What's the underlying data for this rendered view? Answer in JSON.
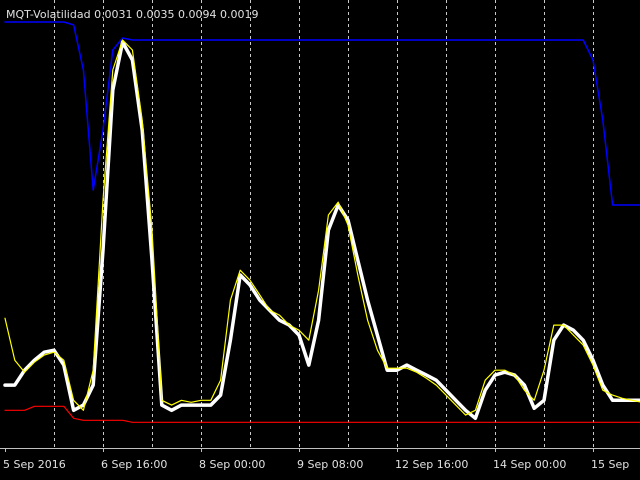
{
  "chart_data": {
    "type": "line",
    "title": "MQT-Volatilidad 0.0031 0.0035 0.0094 0.0019",
    "x": [
      0,
      2,
      4,
      6,
      8,
      10,
      12,
      14,
      16,
      18,
      20,
      22,
      24,
      26,
      28,
      30,
      32,
      34,
      36,
      38,
      40,
      42,
      44,
      46,
      48,
      50,
      52,
      54,
      56,
      58,
      60,
      62,
      64,
      66,
      68,
      70,
      72,
      74,
      76,
      78,
      80,
      82,
      84,
      86,
      88,
      90,
      92,
      94,
      96,
      98,
      100,
      102,
      104,
      106,
      108,
      110,
      112,
      114,
      116,
      118,
      120,
      122,
      124,
      126,
      128,
      130
    ],
    "series": [
      {
        "color": "#ff0000",
        "width": 1.2,
        "values": [
          0.00232,
          0.00232,
          0.00232,
          0.00246,
          0.00246,
          0.00246,
          0.00246,
          0.00204,
          0.00197,
          0.00197,
          0.00197,
          0.00197,
          0.00197,
          0.0019,
          0.0019,
          0.0019,
          0.0019,
          0.0019,
          0.0019,
          0.0019,
          0.0019,
          0.0019,
          0.0019,
          0.0019,
          0.0019,
          0.0019,
          0.0019,
          0.0019,
          0.0019,
          0.0019,
          0.0019,
          0.0019,
          0.0019,
          0.0019,
          0.0019,
          0.0019,
          0.0019,
          0.0019,
          0.0019,
          0.0019,
          0.0019,
          0.0019,
          0.0019,
          0.0019,
          0.0019,
          0.0019,
          0.0019,
          0.0019,
          0.0019,
          0.0019,
          0.0019,
          0.0019,
          0.0019,
          0.0019,
          0.0019,
          0.0019,
          0.0019,
          0.0019,
          0.0019,
          0.0019,
          0.0019,
          0.0019,
          0.0019,
          0.0019,
          0.0019,
          0.0019
        ]
      },
      {
        "color": "#0000ff",
        "width": 1.5,
        "values": [
          0.0159,
          0.0159,
          0.0159,
          0.0159,
          0.0159,
          0.0159,
          0.0159,
          0.0158,
          0.01422,
          0.01002,
          0.01212,
          0.01492,
          0.01534,
          0.01527,
          0.01527,
          0.01527,
          0.01527,
          0.01527,
          0.01527,
          0.01527,
          0.01527,
          0.01527,
          0.01527,
          0.01527,
          0.01527,
          0.01527,
          0.01527,
          0.01527,
          0.01527,
          0.01527,
          0.01527,
          0.01527,
          0.01527,
          0.01527,
          0.01527,
          0.01527,
          0.01527,
          0.01527,
          0.01527,
          0.01527,
          0.01527,
          0.01527,
          0.01527,
          0.01527,
          0.01527,
          0.01527,
          0.01527,
          0.01527,
          0.01527,
          0.01527,
          0.01527,
          0.01527,
          0.01527,
          0.01527,
          0.01527,
          0.01527,
          0.01527,
          0.01527,
          0.01527,
          0.01527,
          0.01457,
          0.01247,
          0.0095,
          0.0095,
          0.0095,
          0.0095
        ]
      },
      {
        "color": "#ffffff",
        "width": 3.5,
        "values": [
          0.0032,
          0.0032,
          0.00372,
          0.00407,
          0.00435,
          0.00442,
          0.0039,
          0.00232,
          0.0025,
          0.0032,
          0.00792,
          0.01352,
          0.0152,
          0.01457,
          0.01212,
          0.00757,
          0.0025,
          0.00232,
          0.0025,
          0.0025,
          0.0025,
          0.0025,
          0.00285,
          0.00477,
          0.00705,
          0.0067,
          0.00617,
          0.00582,
          0.00547,
          0.0053,
          0.00495,
          0.0039,
          0.00547,
          0.00862,
          0.0095,
          0.00897,
          0.00757,
          0.00617,
          0.00495,
          0.00372,
          0.00372,
          0.0039,
          0.00372,
          0.00355,
          0.00337,
          0.00302,
          0.00267,
          0.00232,
          0.00204,
          0.00302,
          0.00355,
          0.00365,
          0.00355,
          0.0032,
          0.00239,
          0.00267,
          0.00477,
          0.0053,
          0.00512,
          0.00477,
          0.00407,
          0.0032,
          0.00267,
          0.00267,
          0.00267,
          0.00267
        ]
      },
      {
        "color": "#ffff00",
        "width": 1.2,
        "values": [
          0.00554,
          0.00407,
          0.00365,
          0.004,
          0.00425,
          0.00435,
          0.00407,
          0.00267,
          0.00232,
          0.00372,
          0.00967,
          0.01422,
          0.01527,
          0.01492,
          0.01247,
          0.00862,
          0.00267,
          0.0025,
          0.00267,
          0.0026,
          0.00267,
          0.00267,
          0.00337,
          0.00617,
          0.00722,
          0.00687,
          0.00635,
          0.00582,
          0.00565,
          0.0053,
          0.00512,
          0.00477,
          0.00652,
          0.00915,
          0.0096,
          0.0088,
          0.00705,
          0.00547,
          0.00442,
          0.00379,
          0.00379,
          0.00379,
          0.00365,
          0.00344,
          0.0032,
          0.00285,
          0.0025,
          0.00215,
          0.00232,
          0.00337,
          0.00372,
          0.00372,
          0.00355,
          0.00302,
          0.00267,
          0.00372,
          0.0053,
          0.0053,
          0.00495,
          0.0046,
          0.0039,
          0.00302,
          0.00285,
          0.00274,
          0.00267,
          0.0026
        ]
      }
    ],
    "xlim": [
      0,
      130
    ],
    "ylim": [
      0.001,
      0.01667
    ],
    "xticks": [
      {
        "value": 0,
        "label": "5 Sep 2016"
      },
      {
        "value": 20,
        "label": "6 Sep 16:00"
      },
      {
        "value": 40,
        "label": "8 Sep 00:00"
      },
      {
        "value": 60,
        "label": "9 Sep 08:00"
      },
      {
        "value": 80,
        "label": "12 Sep 16:00"
      },
      {
        "value": 100,
        "label": "14 Sep 00:00"
      },
      {
        "value": 120,
        "label": "15 Sep"
      }
    ],
    "xgrid": [
      10,
      20,
      30,
      40,
      50,
      60,
      70,
      80,
      90,
      100,
      110,
      120
    ],
    "grid": true
  }
}
